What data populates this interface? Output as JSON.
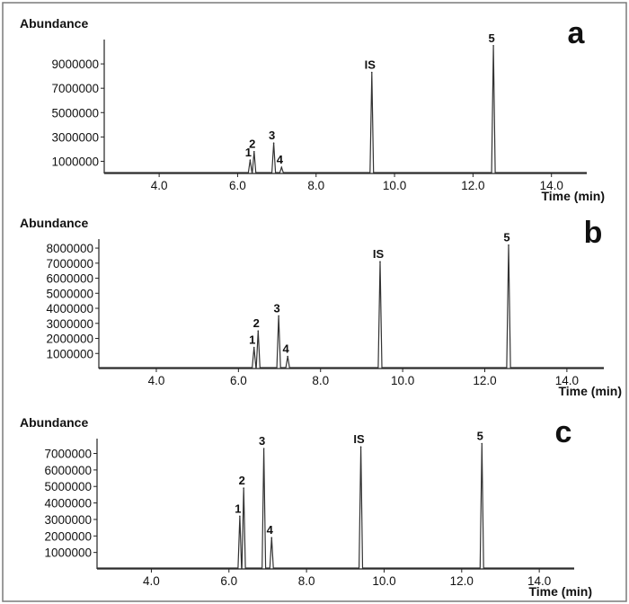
{
  "chart_data": [
    {
      "type": "line",
      "panel_label": "a",
      "ylabel": "Abundance",
      "xlabel": "Time (min)",
      "xlim": [
        2.6,
        14.9
      ],
      "ylim": [
        0,
        11000000
      ],
      "xticks": [
        4.0,
        6.0,
        8.0,
        10.0,
        12.0,
        14.0
      ],
      "xtick_labels": [
        "4.0",
        "6.0",
        "8.0",
        "10.0",
        "12.0",
        "14.0"
      ],
      "yticks": [
        1000000,
        3000000,
        5000000,
        7000000,
        9000000
      ],
      "ytick_labels": [
        "1000000",
        "3000000",
        "5000000",
        "7000000",
        "9000000"
      ],
      "peaks": [
        {
          "label": "1",
          "x": 6.32,
          "y": 1100000
        },
        {
          "label": "2",
          "x": 6.42,
          "y": 1800000
        },
        {
          "label": "3",
          "x": 6.92,
          "y": 2500000
        },
        {
          "label": "4",
          "x": 7.12,
          "y": 500000
        },
        {
          "label": "IS",
          "x": 9.42,
          "y": 8300000
        },
        {
          "label": "5",
          "x": 12.52,
          "y": 10500000
        }
      ]
    },
    {
      "type": "line",
      "panel_label": "b",
      "ylabel": "Abundance",
      "xlabel": "Time (min)",
      "xlim": [
        2.6,
        14.9
      ],
      "ylim": [
        0,
        8600000
      ],
      "xticks": [
        4.0,
        6.0,
        8.0,
        10.0,
        12.0,
        14.0
      ],
      "xtick_labels": [
        "4.0",
        "6.0",
        "8.0",
        "10.0",
        "12.0",
        "14.0"
      ],
      "yticks": [
        1000000,
        2000000,
        3000000,
        4000000,
        5000000,
        6000000,
        7000000,
        8000000
      ],
      "ytick_labels": [
        "1000000",
        "2000000",
        "3000000",
        "4000000",
        "5000000",
        "6000000",
        "7000000",
        "8000000"
      ],
      "peaks": [
        {
          "label": "1",
          "x": 6.38,
          "y": 1400000
        },
        {
          "label": "2",
          "x": 6.48,
          "y": 2500000
        },
        {
          "label": "3",
          "x": 6.98,
          "y": 3500000
        },
        {
          "label": "4",
          "x": 7.2,
          "y": 800000
        },
        {
          "label": "IS",
          "x": 9.45,
          "y": 7100000
        },
        {
          "label": "5",
          "x": 12.58,
          "y": 8200000
        }
      ]
    },
    {
      "type": "line",
      "panel_label": "c",
      "ylabel": "Abundance",
      "xlabel": "Time (min)",
      "xlim": [
        2.6,
        14.9
      ],
      "ylim": [
        0,
        7900000
      ],
      "xticks": [
        4.0,
        6.0,
        8.0,
        10.0,
        12.0,
        14.0
      ],
      "xtick_labels": [
        "4.0",
        "6.0",
        "8.0",
        "10.0",
        "12.0",
        "14.0"
      ],
      "yticks": [
        1000000,
        2000000,
        3000000,
        4000000,
        5000000,
        6000000,
        7000000
      ],
      "ytick_labels": [
        "1000000",
        "2000000",
        "3000000",
        "4000000",
        "5000000",
        "6000000",
        "7000000"
      ],
      "peaks": [
        {
          "label": "1",
          "x": 6.28,
          "y": 3200000
        },
        {
          "label": "2",
          "x": 6.38,
          "y": 4900000
        },
        {
          "label": "3",
          "x": 6.9,
          "y": 7300000
        },
        {
          "label": "4",
          "x": 7.1,
          "y": 1900000
        },
        {
          "label": "IS",
          "x": 9.4,
          "y": 7400000
        },
        {
          "label": "5",
          "x": 12.52,
          "y": 7600000
        }
      ]
    }
  ]
}
